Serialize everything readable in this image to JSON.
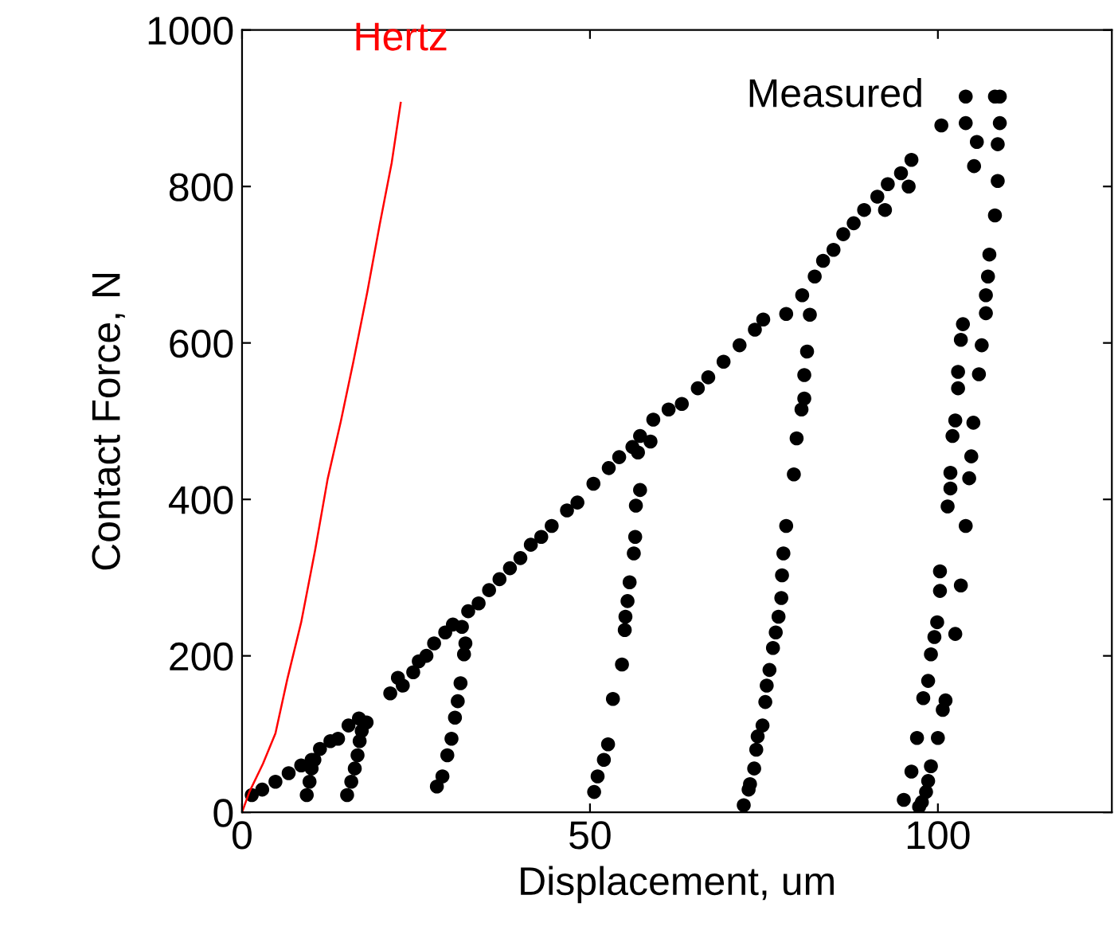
{
  "chart_data": {
    "type": "scatter",
    "xlabel": "Displacement, um",
    "ylabel": "Contact Force, N",
    "xlim": [
      0,
      125
    ],
    "xticks": [
      0,
      50,
      100
    ],
    "ylim": [
      0,
      1000
    ],
    "yticks": [
      0,
      200,
      400,
      600,
      800,
      1000
    ],
    "grid": false,
    "series": [
      {
        "name": "Hertz",
        "type": "line",
        "color": "#ff0000",
        "line_style": "solid",
        "marker": "none",
        "x": [
          0,
          1.05,
          3.0,
          4.8,
          6.5,
          8.5,
          10.5,
          12.3,
          14.2,
          16.0,
          18.0,
          19.8,
          21.5,
          22.8
        ],
        "values": [
          0,
          26,
          62,
          101,
          170,
          243,
          335,
          426,
          500,
          576,
          665,
          752,
          830,
          907
        ]
      },
      {
        "name": "Measured",
        "marker": "circle",
        "color": "#000000",
        "x": [
          1.4,
          2.9,
          4.8,
          6.7,
          8.5,
          10.0,
          11.2,
          12.7,
          13.8,
          15.3,
          16.8,
          17.9,
          9.3,
          9.7,
          10.0,
          10.4,
          15.1,
          15.7,
          16.2,
          16.6,
          16.9,
          17.2,
          21.3,
          22.4,
          23.1,
          24.6,
          25.4,
          26.5,
          27.6,
          29.2,
          30.3,
          31.6,
          28.0,
          28.8,
          29.5,
          30.1,
          30.6,
          31.0,
          31.4,
          31.9,
          32.1,
          32.5,
          34.0,
          35.5,
          37.0,
          38.5,
          40.0,
          41.5,
          43.0,
          44.5,
          46.7,
          48.2,
          50.5,
          52.7,
          54.2,
          56.1,
          57.2,
          59.1,
          50.6,
          51.1,
          52.0,
          52.6,
          53.3,
          54.6,
          55.0,
          55.1,
          55.4,
          55.7,
          56.3,
          56.5,
          56.6,
          57.2,
          56.9,
          58.7,
          61.3,
          63.2,
          65.5,
          67.0,
          69.2,
          71.5,
          73.7,
          74.9,
          78.2,
          80.5,
          82.3,
          83.5,
          85.0,
          86.4,
          87.9,
          89.4,
          91.3,
          92.8,
          94.7,
          96.2,
          95.8,
          92.4,
          100.5,
          104.0,
          108.2,
          108.9,
          104.0,
          108.9,
          105.6,
          108.6,
          105.2,
          108.6,
          108.2,
          107.4,
          107.2,
          106.9,
          106.9,
          103.6,
          103.3,
          106.3,
          102.9,
          105.9,
          102.9,
          102.5,
          105.1,
          102.1,
          104.8,
          101.8,
          81.6,
          81.2,
          80.8,
          80.8,
          80.4,
          79.7,
          79.3,
          78.2,
          77.8,
          77.6,
          77.5,
          77.1,
          76.7,
          76.3,
          75.8,
          75.4,
          75.2,
          74.8,
          74.1,
          73.9,
          73.6,
          73.0,
          72.8,
          72.1,
          104.5,
          101.8,
          101.4,
          104.0,
          100.3,
          100.3,
          103.3,
          99.9,
          99.5,
          102.5,
          99.0,
          98.6,
          97.9,
          101.1,
          100.7,
          97.0,
          100.0,
          99.0,
          96.2,
          98.6,
          98.3,
          95.1,
          97.7,
          97.3
        ],
        "values": [
          22,
          29,
          39,
          50,
          60,
          67,
          81,
          91,
          94,
          111,
          120,
          115,
          22,
          39,
          56,
          67,
          22,
          39,
          56,
          73,
          91,
          104,
          152,
          172,
          162,
          179,
          193,
          200,
          216,
          230,
          240,
          237,
          33,
          46,
          73,
          94,
          121,
          142,
          165,
          202,
          216,
          257,
          267,
          284,
          298,
          312,
          325,
          342,
          352,
          366,
          386,
          396,
          420,
          440,
          454,
          467,
          481,
          502,
          26,
          46,
          67,
          87,
          145,
          189,
          233,
          250,
          270,
          294,
          331,
          352,
          392,
          412,
          460,
          474,
          515,
          522,
          542,
          556,
          576,
          597,
          617,
          630,
          637,
          661,
          685,
          705,
          719,
          739,
          753,
          770,
          787,
          803,
          817,
          834,
          800,
          770,
          878,
          915,
          915,
          915,
          881,
          881,
          857,
          854,
          826,
          807,
          763,
          713,
          685,
          661,
          638,
          624,
          604,
          597,
          563,
          560,
          542,
          501,
          498,
          481,
          455,
          434,
          636,
          589,
          559,
          529,
          515,
          478,
          432,
          366,
          331,
          303,
          274,
          250,
          230,
          210,
          182,
          162,
          141,
          111,
          97,
          80,
          56,
          36,
          29,
          9,
          427,
          414,
          391,
          366,
          308,
          283,
          290,
          243,
          224,
          228,
          202,
          168,
          146,
          143,
          131,
          95,
          95,
          59,
          52,
          40,
          26,
          16,
          13,
          7
        ]
      }
    ]
  }
}
